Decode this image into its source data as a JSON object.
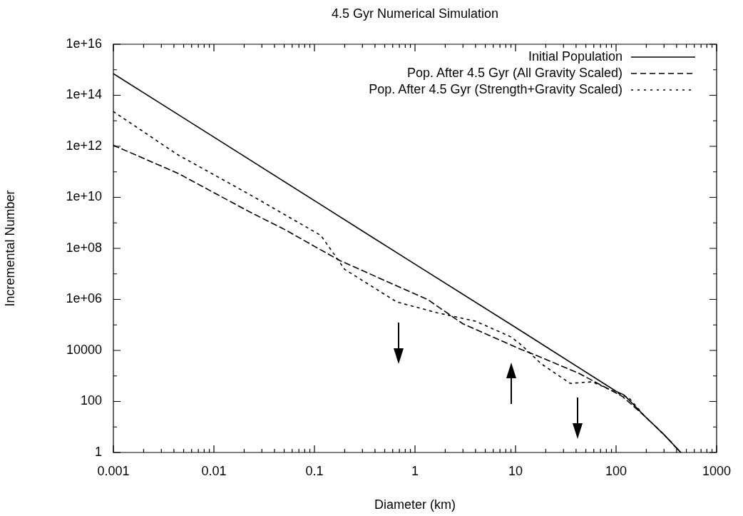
{
  "chart_data": {
    "type": "line",
    "title": "4.5 Gyr Numerical Simulation",
    "xlabel": "Diameter (km)",
    "ylabel": "Incremental Number",
    "log": "xy",
    "grid": false,
    "legend": "top right",
    "marker": "none",
    "xlim": [
      0.001,
      1000
    ],
    "xticks": [
      0.001,
      {
        "value": 0.002,
        "label": null
      },
      {
        "value": 0.003,
        "label": null
      },
      {
        "value": 0.004,
        "label": null
      },
      {
        "value": 0.005,
        "label": null
      },
      {
        "value": 0.006,
        "label": null
      },
      {
        "value": 0.007,
        "label": null
      },
      {
        "value": 0.008,
        "label": null
      },
      {
        "value": 0.009,
        "label": null
      },
      0.01,
      {
        "value": 0.02,
        "label": null
      },
      {
        "value": 0.03,
        "label": null
      },
      {
        "value": 0.04,
        "label": null
      },
      {
        "value": 0.05,
        "label": null
      },
      {
        "value": 0.06,
        "label": null
      },
      {
        "value": 0.07,
        "label": null
      },
      {
        "value": 0.08,
        "label": null
      },
      {
        "value": 0.09,
        "label": null
      },
      0.1,
      {
        "value": 0.2,
        "label": null
      },
      {
        "value": 0.3,
        "label": null
      },
      {
        "value": 0.4,
        "label": null
      },
      {
        "value": 0.5,
        "label": null
      },
      {
        "value": 0.6,
        "label": null
      },
      {
        "value": 0.7,
        "label": null
      },
      {
        "value": 0.8,
        "label": null
      },
      {
        "value": 0.9,
        "label": null
      },
      1,
      {
        "value": 2,
        "label": null
      },
      {
        "value": 3,
        "label": null
      },
      {
        "value": 4,
        "label": null
      },
      {
        "value": 5,
        "label": null
      },
      {
        "value": 6,
        "label": null
      },
      {
        "value": 7,
        "label": null
      },
      {
        "value": 8,
        "label": null
      },
      {
        "value": 9,
        "label": null
      },
      10,
      {
        "value": 20,
        "label": null
      },
      {
        "value": 30,
        "label": null
      },
      {
        "value": 40,
        "label": null
      },
      {
        "value": 50,
        "label": null
      },
      {
        "value": 60,
        "label": null
      },
      {
        "value": 70,
        "label": null
      },
      {
        "value": 80,
        "label": null
      },
      {
        "value": 90,
        "label": null
      },
      100,
      {
        "value": 200,
        "label": null
      },
      {
        "value": 300,
        "label": null
      },
      {
        "value": 400,
        "label": null
      },
      {
        "value": 500,
        "label": null
      },
      {
        "value": 600,
        "label": null
      },
      {
        "value": 700,
        "label": null
      },
      {
        "value": 800,
        "label": null
      },
      {
        "value": 900,
        "label": null
      },
      1000
    ],
    "ylim": [
      1,
      1e+16
    ],
    "yticks": [
      1,
      {
        "value": 10,
        "label": null
      },
      100,
      {
        "value": 1000,
        "label": null
      },
      10000,
      {
        "value": 100000.0,
        "label": null
      },
      {
        "value": 1000000.0,
        "label": "1e+06"
      },
      {
        "value": 10000000.0,
        "label": null
      },
      {
        "value": 100000000.0,
        "label": "1e+08"
      },
      {
        "value": 1000000000.0,
        "label": null
      },
      {
        "value": 10000000000.0,
        "label": "1e+10"
      },
      {
        "value": 100000000000.0,
        "label": null
      },
      {
        "value": 1000000000000.0,
        "label": "1e+12"
      },
      {
        "value": 10000000000000.0,
        "label": null
      },
      {
        "value": 100000000000000.0,
        "label": "1e+14"
      },
      {
        "value": 1000000000000000.0,
        "label": null
      },
      {
        "value": 1e+16,
        "label": "1e+16"
      }
    ],
    "series": [
      {
        "name": "Initial Population",
        "color": "#000000",
        "line_style": "solid",
        "x": [
          0.001,
          0.01,
          0.1,
          1,
          10,
          100,
          120,
          190,
          300,
          440
        ],
        "values": [
          700000000000000.0,
          2300000000000.0,
          7400000000.0,
          24000000.0,
          80000.0,
          250,
          180,
          28,
          5,
          1
        ]
      },
      {
        "name": "Pop. After 4.5 Gyr (All Gravity Scaled)",
        "color": "#000000",
        "line_style": "dashed",
        "x": [
          0.001,
          0.0044,
          0.0226,
          0.051,
          0.1,
          0.18,
          1.34,
          3,
          11.3,
          15.5,
          42,
          115,
          190,
          300,
          440
        ],
        "values": [
          1100000000000.0,
          87000000000.0,
          2700000000.0,
          540000000.0,
          120000000.0,
          33000000.0,
          980000.0,
          110000.0,
          11000.0,
          6800.0,
          1300.0,
          160,
          28,
          5,
          1
        ]
      },
      {
        "name": "Pop. After 4.5 Gyr (Strength+Gravity Scaled)",
        "color": "#000000",
        "line_style": "dotted",
        "x": [
          0.001,
          0.0044,
          0.0226,
          0.116,
          0.2,
          0.66,
          1.66,
          4,
          9,
          11.3,
          18,
          35,
          58,
          135,
          190,
          300,
          440
        ],
        "values": [
          23000000000000.0,
          460000000000.0,
          13000000000.0,
          320000000.0,
          15000000.0,
          790000.0,
          300000.0,
          140000.0,
          34000.0,
          17000.0,
          3000.0,
          510,
          590,
          135,
          28,
          5,
          1
        ]
      }
    ]
  }
}
